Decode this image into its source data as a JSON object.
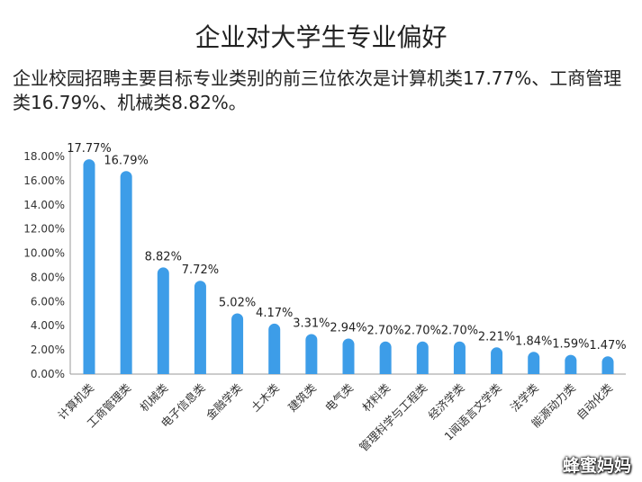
{
  "page": {
    "title": "企业对大学生专业偏好",
    "subtitle": "企业校园招聘主要目标专业类别的前三位依次是计算机类17.77%、工商管理类16.79%、机械类8.82%。",
    "watermark": "蜂蜜妈妈"
  },
  "chart_data": {
    "type": "bar",
    "categories": [
      "计算机类",
      "工商管理类",
      "机械类",
      "电子信息类",
      "金融学类",
      "土木类",
      "建筑类",
      "电气类",
      "材料类",
      "管理科学与工程类",
      "经济学类",
      "1闻语言文学类",
      "法学类",
      "能源动力类",
      "自动化类"
    ],
    "values": [
      17.77,
      16.79,
      8.82,
      7.72,
      5.02,
      4.17,
      3.31,
      2.94,
      2.7,
      2.7,
      2.7,
      2.21,
      1.84,
      1.59,
      1.47
    ],
    "data_labels": [
      "17.77%",
      "16.79%",
      "8.82%",
      "7.72%",
      "5.02%",
      "4.17%",
      "3.31%",
      "2.94%",
      "2.70%",
      "2.70%",
      "2.70%",
      "2.21%",
      "1.84%",
      "1.59%",
      "1.47%"
    ],
    "y_ticks": [
      "0.00%",
      "2.00%",
      "4.00%",
      "6.00%",
      "8.00%",
      "10.00%",
      "12.00%",
      "14.00%",
      "16.00%",
      "18.00%"
    ],
    "ylim": [
      0,
      18
    ],
    "bar_color": "#3d9de8",
    "grid": false
  }
}
